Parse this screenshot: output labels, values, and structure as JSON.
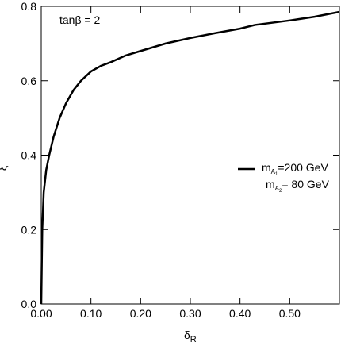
{
  "chart_data": {
    "type": "line",
    "xlabel": {
      "text": "δ",
      "sub": "R"
    },
    "ylabel": "ξ",
    "annotation": "tanβ = 2",
    "legend_lines": [
      {
        "text": "m",
        "sub": "A",
        "subsub": "1",
        "tail": "=200 GeV"
      },
      {
        "text": "m",
        "sub": "A",
        "subsub": "2",
        "tail": "= 80 GeV"
      }
    ],
    "x": [
      0,
      0.002,
      0.005,
      0.01,
      0.016,
      0.025,
      0.037,
      0.05,
      0.065,
      0.08,
      0.1,
      0.12,
      0.14,
      0.17,
      0.2,
      0.25,
      0.3,
      0.35,
      0.4,
      0.43,
      0.5,
      0.55,
      0.6
    ],
    "series": [
      {
        "color": "#000000",
        "values": [
          0,
          0.2,
          0.3,
          0.36,
          0.4,
          0.45,
          0.5,
          0.54,
          0.575,
          0.6,
          0.625,
          0.64,
          0.65,
          0.668,
          0.68,
          0.7,
          0.715,
          0.728,
          0.74,
          0.75,
          0.762,
          0.772,
          0.785
        ]
      }
    ],
    "xlim": [
      0,
      0.6
    ],
    "ylim": [
      0,
      0.8
    ],
    "xticks": [
      {
        "value": 0,
        "label": "0.00"
      },
      {
        "value": 0.1,
        "label": "0.10"
      },
      {
        "value": 0.2,
        "label": "0.20"
      },
      {
        "value": 0.3,
        "label": "0.30"
      },
      {
        "value": 0.4,
        "label": "0.40"
      },
      {
        "value": 0.5,
        "label": "0.50"
      }
    ],
    "yticks": [
      {
        "value": 0,
        "label": "0.0"
      },
      0.2,
      0.4,
      0.6,
      0.8
    ]
  }
}
